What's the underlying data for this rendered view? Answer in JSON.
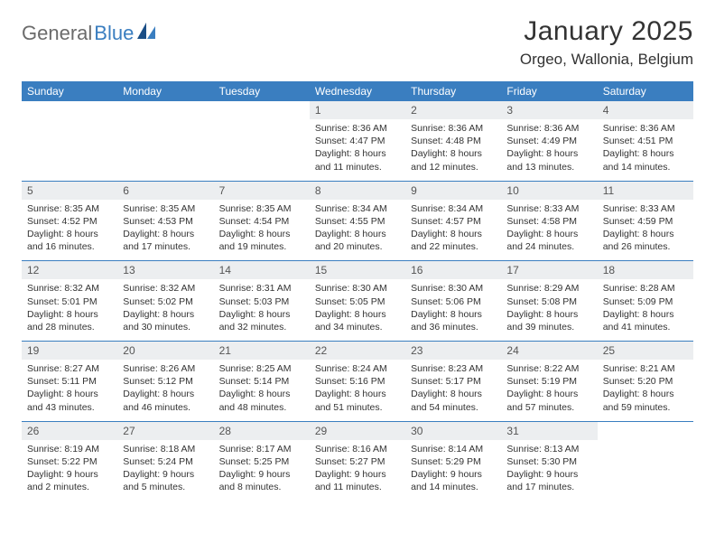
{
  "brand": {
    "part1": "General",
    "part2": "Blue"
  },
  "title": "January 2025",
  "location": "Orgeo, Wallonia, Belgium",
  "colors": {
    "header_bg": "#3a7ec0",
    "header_fg": "#ffffff",
    "daynum_bg": "#eceef0",
    "text": "#333333",
    "logo_gray": "#6b6b6b",
    "logo_blue": "#3a7ec0",
    "page_bg": "#ffffff",
    "rule": "#3a7ec0"
  },
  "typography": {
    "title_fontsize": 30,
    "location_fontsize": 17,
    "dayheader_fontsize": 12,
    "daynum_fontsize": 12,
    "detail_fontsize": 10.5
  },
  "day_names": [
    "Sunday",
    "Monday",
    "Tuesday",
    "Wednesday",
    "Thursday",
    "Friday",
    "Saturday"
  ],
  "weeks": [
    [
      null,
      null,
      null,
      {
        "n": "1",
        "sr": "8:36 AM",
        "ss": "4:47 PM",
        "dl": "8 hours and 11 minutes."
      },
      {
        "n": "2",
        "sr": "8:36 AM",
        "ss": "4:48 PM",
        "dl": "8 hours and 12 minutes."
      },
      {
        "n": "3",
        "sr": "8:36 AM",
        "ss": "4:49 PM",
        "dl": "8 hours and 13 minutes."
      },
      {
        "n": "4",
        "sr": "8:36 AM",
        "ss": "4:51 PM",
        "dl": "8 hours and 14 minutes."
      }
    ],
    [
      {
        "n": "5",
        "sr": "8:35 AM",
        "ss": "4:52 PM",
        "dl": "8 hours and 16 minutes."
      },
      {
        "n": "6",
        "sr": "8:35 AM",
        "ss": "4:53 PM",
        "dl": "8 hours and 17 minutes."
      },
      {
        "n": "7",
        "sr": "8:35 AM",
        "ss": "4:54 PM",
        "dl": "8 hours and 19 minutes."
      },
      {
        "n": "8",
        "sr": "8:34 AM",
        "ss": "4:55 PM",
        "dl": "8 hours and 20 minutes."
      },
      {
        "n": "9",
        "sr": "8:34 AM",
        "ss": "4:57 PM",
        "dl": "8 hours and 22 minutes."
      },
      {
        "n": "10",
        "sr": "8:33 AM",
        "ss": "4:58 PM",
        "dl": "8 hours and 24 minutes."
      },
      {
        "n": "11",
        "sr": "8:33 AM",
        "ss": "4:59 PM",
        "dl": "8 hours and 26 minutes."
      }
    ],
    [
      {
        "n": "12",
        "sr": "8:32 AM",
        "ss": "5:01 PM",
        "dl": "8 hours and 28 minutes."
      },
      {
        "n": "13",
        "sr": "8:32 AM",
        "ss": "5:02 PM",
        "dl": "8 hours and 30 minutes."
      },
      {
        "n": "14",
        "sr": "8:31 AM",
        "ss": "5:03 PM",
        "dl": "8 hours and 32 minutes."
      },
      {
        "n": "15",
        "sr": "8:30 AM",
        "ss": "5:05 PM",
        "dl": "8 hours and 34 minutes."
      },
      {
        "n": "16",
        "sr": "8:30 AM",
        "ss": "5:06 PM",
        "dl": "8 hours and 36 minutes."
      },
      {
        "n": "17",
        "sr": "8:29 AM",
        "ss": "5:08 PM",
        "dl": "8 hours and 39 minutes."
      },
      {
        "n": "18",
        "sr": "8:28 AM",
        "ss": "5:09 PM",
        "dl": "8 hours and 41 minutes."
      }
    ],
    [
      {
        "n": "19",
        "sr": "8:27 AM",
        "ss": "5:11 PM",
        "dl": "8 hours and 43 minutes."
      },
      {
        "n": "20",
        "sr": "8:26 AM",
        "ss": "5:12 PM",
        "dl": "8 hours and 46 minutes."
      },
      {
        "n": "21",
        "sr": "8:25 AM",
        "ss": "5:14 PM",
        "dl": "8 hours and 48 minutes."
      },
      {
        "n": "22",
        "sr": "8:24 AM",
        "ss": "5:16 PM",
        "dl": "8 hours and 51 minutes."
      },
      {
        "n": "23",
        "sr": "8:23 AM",
        "ss": "5:17 PM",
        "dl": "8 hours and 54 minutes."
      },
      {
        "n": "24",
        "sr": "8:22 AM",
        "ss": "5:19 PM",
        "dl": "8 hours and 57 minutes."
      },
      {
        "n": "25",
        "sr": "8:21 AM",
        "ss": "5:20 PM",
        "dl": "8 hours and 59 minutes."
      }
    ],
    [
      {
        "n": "26",
        "sr": "8:19 AM",
        "ss": "5:22 PM",
        "dl": "9 hours and 2 minutes."
      },
      {
        "n": "27",
        "sr": "8:18 AM",
        "ss": "5:24 PM",
        "dl": "9 hours and 5 minutes."
      },
      {
        "n": "28",
        "sr": "8:17 AM",
        "ss": "5:25 PM",
        "dl": "9 hours and 8 minutes."
      },
      {
        "n": "29",
        "sr": "8:16 AM",
        "ss": "5:27 PM",
        "dl": "9 hours and 11 minutes."
      },
      {
        "n": "30",
        "sr": "8:14 AM",
        "ss": "5:29 PM",
        "dl": "9 hours and 14 minutes."
      },
      {
        "n": "31",
        "sr": "8:13 AM",
        "ss": "5:30 PM",
        "dl": "9 hours and 17 minutes."
      },
      null
    ]
  ],
  "labels": {
    "sunrise": "Sunrise:",
    "sunset": "Sunset:",
    "daylight": "Daylight:"
  }
}
